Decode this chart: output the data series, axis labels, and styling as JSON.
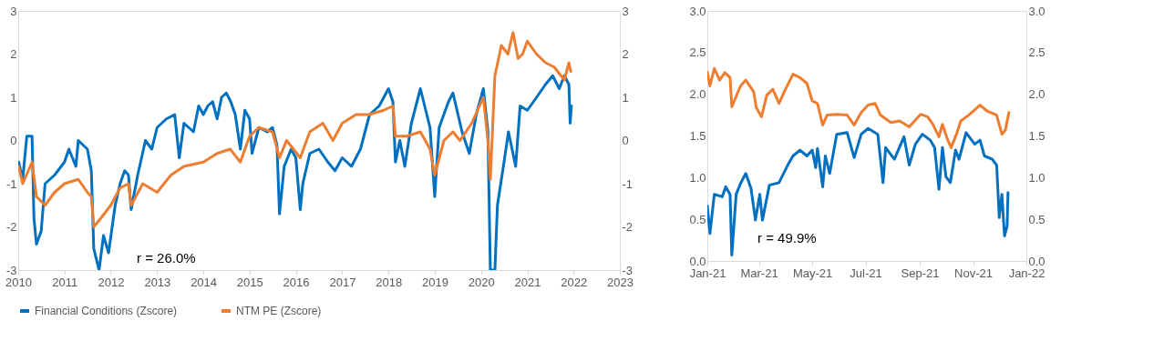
{
  "chart_data": [
    {
      "type": "line",
      "legend": "bottom",
      "grid": false,
      "xlim": [
        "2010-01-01",
        "2023-01-01"
      ],
      "xticks": [
        {
          "value": "2010-01-01",
          "label": "2010"
        },
        {
          "value": "2011-01-01",
          "label": "2011"
        },
        {
          "value": "2012-01-01",
          "label": "2012"
        },
        {
          "value": "2013-01-01",
          "label": "2013"
        },
        {
          "value": "2014-01-01",
          "label": "2014"
        },
        {
          "value": "2015-01-01",
          "label": "2015"
        },
        {
          "value": "2016-01-01",
          "label": "2016"
        },
        {
          "value": "2017-01-01",
          "label": "2017"
        },
        {
          "value": "2018-01-01",
          "label": "2018"
        },
        {
          "value": "2019-01-01",
          "label": "2019"
        },
        {
          "value": "2020-01-01",
          "label": "2020"
        },
        {
          "value": "2021-01-01",
          "label": "2021"
        },
        {
          "value": "2022-01-01",
          "label": "2022"
        },
        {
          "value": "2023-01-01",
          "label": "2023"
        }
      ],
      "ylim": [
        -3,
        3
      ],
      "yticks": [
        -3,
        -2,
        -1,
        0,
        1,
        2,
        3
      ],
      "y2lim": [
        -3,
        3
      ],
      "y2ticks": [
        -3,
        -2,
        -1,
        0,
        1,
        2,
        3
      ],
      "annotations": [
        "r = 26.0%"
      ],
      "series": [
        {
          "name": "Financial Conditions (Zscore)",
          "color": "#0070c0",
          "x": [
            "2010-01-05",
            "2010-02-05",
            "2010-03-10",
            "2010-04-20",
            "2010-05-05",
            "2010-05-25",
            "2010-07-01",
            "2010-08-01",
            "2010-10-15",
            "2011-01-01",
            "2011-02-05",
            "2011-04-01",
            "2011-04-20",
            "2011-07-01",
            "2011-08-01",
            "2011-08-20",
            "2011-10-01",
            "2011-11-05",
            "2011-12-15",
            "2012-02-05",
            "2012-03-15",
            "2012-04-20",
            "2012-05-20",
            "2012-06-10",
            "2012-08-01",
            "2012-10-01",
            "2012-11-20",
            "2013-01-01",
            "2013-03-15",
            "2013-05-20",
            "2013-06-25",
            "2013-08-01",
            "2013-10-15",
            "2013-11-25",
            "2014-01-01",
            "2014-02-05",
            "2014-03-15",
            "2014-04-20",
            "2014-05-25",
            "2014-07-01",
            "2014-08-05",
            "2014-09-10",
            "2014-10-20",
            "2014-11-25",
            "2015-01-01",
            "2015-01-20",
            "2015-03-15",
            "2015-05-20",
            "2015-07-01",
            "2015-08-05",
            "2015-08-25",
            "2015-10-01",
            "2015-11-25",
            "2016-01-01",
            "2016-02-05",
            "2016-02-25",
            "2016-04-20",
            "2016-07-01",
            "2016-09-10",
            "2016-11-05",
            "2017-01-01",
            "2017-03-15",
            "2017-05-25",
            "2017-08-05",
            "2017-10-20",
            "2018-01-01",
            "2018-02-05",
            "2018-02-25",
            "2018-04-01",
            "2018-05-10",
            "2018-07-01",
            "2018-09-10",
            "2018-11-25",
            "2019-01-01",
            "2019-02-05",
            "2019-04-20",
            "2019-05-25",
            "2019-08-05",
            "2019-10-01",
            "2019-11-25",
            "2020-01-20",
            "2020-02-25",
            "2020-03-15",
            "2020-04-20",
            "2020-05-10",
            "2020-07-01",
            "2020-08-05",
            "2020-10-01",
            "2020-11-05",
            "2021-01-01",
            "2021-03-15",
            "2021-05-25",
            "2021-07-20",
            "2021-09-10",
            "2021-10-20",
            "2021-11-25",
            "2021-12-05",
            "2021-12-15"
          ],
          "values": [
            -0.5,
            -0.9,
            0.1,
            0.1,
            -1.8,
            -2.4,
            -2.1,
            -1.0,
            -0.8,
            -0.5,
            -0.2,
            -0.6,
            0.0,
            -0.2,
            -0.7,
            -2.5,
            -3.0,
            -2.2,
            -2.6,
            -1.5,
            -1.0,
            -0.7,
            -0.8,
            -1.6,
            -0.8,
            0.0,
            -0.2,
            0.3,
            0.5,
            0.6,
            -0.4,
            0.4,
            0.2,
            0.8,
            0.6,
            0.8,
            0.9,
            0.5,
            1.0,
            1.1,
            0.9,
            0.6,
            -0.2,
            0.7,
            0.5,
            -0.3,
            0.3,
            0.2,
            0.3,
            -0.1,
            -1.7,
            -0.6,
            -0.2,
            -0.4,
            -1.6,
            -1.0,
            -0.3,
            -0.2,
            -0.5,
            -0.7,
            -0.4,
            -0.6,
            -0.2,
            0.6,
            0.8,
            1.2,
            0.9,
            -0.5,
            0.0,
            -0.6,
            0.4,
            1.2,
            0.3,
            -1.3,
            0.3,
            0.9,
            1.1,
            0.2,
            -0.3,
            0.6,
            1.2,
            0.2,
            -3.0,
            -3.0,
            -1.5,
            -0.5,
            0.2,
            -0.6,
            0.8,
            0.7,
            1.0,
            1.3,
            1.5,
            1.2,
            1.5,
            1.3,
            0.4,
            0.8
          ]
        },
        {
          "name": "NTM PE (Zscore)",
          "color": "#ed7d31",
          "axis": "y2",
          "x": [
            "2010-01-05",
            "2010-02-05",
            "2010-04-20",
            "2010-05-25",
            "2010-08-01",
            "2010-10-15",
            "2011-01-01",
            "2011-04-20",
            "2011-07-01",
            "2011-08-01",
            "2011-08-20",
            "2011-10-15",
            "2012-01-01",
            "2012-03-15",
            "2012-05-20",
            "2012-06-10",
            "2012-09-10",
            "2013-01-01",
            "2013-04-20",
            "2013-08-01",
            "2014-01-01",
            "2014-04-20",
            "2014-08-01",
            "2014-10-20",
            "2015-01-01",
            "2015-03-15",
            "2015-07-01",
            "2015-08-25",
            "2015-10-20",
            "2016-02-05",
            "2016-04-20",
            "2016-08-01",
            "2016-10-20",
            "2017-01-01",
            "2017-04-20",
            "2017-08-01",
            "2017-11-25",
            "2018-02-05",
            "2018-02-25",
            "2018-05-25",
            "2018-09-10",
            "2018-11-25",
            "2019-01-01",
            "2019-03-15",
            "2019-05-25",
            "2019-07-20",
            "2019-10-20",
            "2020-01-20",
            "2020-02-25",
            "2020-03-15",
            "2020-04-20",
            "2020-06-10",
            "2020-08-01",
            "2020-09-10",
            "2020-10-20",
            "2020-11-25",
            "2021-01-01",
            "2021-03-15",
            "2021-05-25",
            "2021-08-01",
            "2021-10-20",
            "2021-11-25",
            "2021-12-10"
          ],
          "values": [
            -0.6,
            -1.0,
            -0.5,
            -1.3,
            -1.5,
            -1.2,
            -1.0,
            -0.9,
            -1.2,
            -1.3,
            -2.0,
            -1.8,
            -1.5,
            -1.1,
            -1.0,
            -1.5,
            -1.0,
            -1.2,
            -0.8,
            -0.6,
            -0.5,
            -0.3,
            -0.2,
            -0.5,
            0.1,
            0.3,
            0.2,
            -0.4,
            0.0,
            -0.4,
            0.2,
            0.4,
            0.0,
            0.4,
            0.6,
            0.6,
            0.7,
            0.8,
            0.1,
            0.1,
            0.2,
            -0.2,
            -0.8,
            0.0,
            0.2,
            0.0,
            0.4,
            1.0,
            0.0,
            -0.9,
            1.5,
            2.2,
            2.0,
            2.5,
            1.9,
            2.0,
            2.3,
            2.0,
            1.8,
            1.7,
            1.4,
            1.8,
            1.6
          ]
        }
      ]
    },
    {
      "type": "line",
      "grid": false,
      "xlim": [
        "2021-01-01",
        "2022-01-01"
      ],
      "xticks": [
        {
          "value": "2021-01-01",
          "label": "Jan-21"
        },
        {
          "value": "2021-03-01",
          "label": "Mar-21"
        },
        {
          "value": "2021-05-01",
          "label": "May-21"
        },
        {
          "value": "2021-07-01",
          "label": "Jul-21"
        },
        {
          "value": "2021-09-01",
          "label": "Sep-21"
        },
        {
          "value": "2021-11-01",
          "label": "Nov-21"
        },
        {
          "value": "2022-01-01",
          "label": "Jan-22"
        }
      ],
      "ylim": [
        0,
        3
      ],
      "yticks": [
        {
          "value": 0,
          "label": "0.0"
        },
        {
          "value": 0.5,
          "label": "0.5"
        },
        {
          "value": 1,
          "label": "1.0"
        },
        {
          "value": 1.5,
          "label": "1.5"
        },
        {
          "value": 2,
          "label": "2.0"
        },
        {
          "value": 2.5,
          "label": "2.5"
        },
        {
          "value": 3,
          "label": "3.0"
        }
      ],
      "y2lim": [
        0,
        3
      ],
      "y2ticks": [
        {
          "value": 0,
          "label": "0.0"
        },
        {
          "value": 0.5,
          "label": "0.5"
        },
        {
          "value": 1,
          "label": "1.0"
        },
        {
          "value": 1.5,
          "label": "1.5"
        },
        {
          "value": 2,
          "label": "2.0"
        },
        {
          "value": 2.5,
          "label": "2.5"
        },
        {
          "value": 3,
          "label": "3.0"
        }
      ],
      "annotations": [
        "r = 49.9%"
      ],
      "series": [
        {
          "color": "#0070c0",
          "x": [
            "2021-01-01",
            "2021-01-04",
            "2021-01-09",
            "2021-01-18",
            "2021-01-22",
            "2021-01-27",
            "2021-01-29",
            "2021-02-03",
            "2021-02-08",
            "2021-02-14",
            "2021-02-20",
            "2021-02-25",
            "2021-03-02",
            "2021-03-05",
            "2021-03-13",
            "2021-03-24",
            "2021-04-03",
            "2021-04-09",
            "2021-04-17",
            "2021-04-25",
            "2021-05-01",
            "2021-05-05",
            "2021-05-07",
            "2021-05-13",
            "2021-05-16",
            "2021-05-21",
            "2021-05-29",
            "2021-06-10",
            "2021-06-18",
            "2021-06-26",
            "2021-07-04",
            "2021-07-15",
            "2021-07-21",
            "2021-07-24",
            "2021-08-03",
            "2021-08-14",
            "2021-08-20",
            "2021-08-27",
            "2021-09-04",
            "2021-09-13",
            "2021-09-18",
            "2021-09-23",
            "2021-09-27",
            "2021-10-01",
            "2021-10-06",
            "2021-10-12",
            "2021-10-16",
            "2021-10-24",
            "2021-11-03",
            "2021-11-09",
            "2021-11-14",
            "2021-11-23",
            "2021-11-28",
            "2021-12-01",
            "2021-12-04",
            "2021-12-07",
            "2021-12-10",
            "2021-12-11"
          ],
          "values": [
            0.66,
            0.33,
            0.8,
            0.77,
            0.89,
            0.8,
            0.07,
            0.8,
            0.93,
            1.05,
            0.87,
            0.49,
            0.8,
            0.49,
            0.91,
            0.94,
            1.15,
            1.26,
            1.33,
            1.26,
            1.33,
            1.12,
            1.35,
            0.89,
            1.26,
            1.05,
            1.52,
            1.54,
            1.24,
            1.52,
            1.59,
            1.52,
            0.94,
            1.36,
            1.22,
            1.49,
            1.15,
            1.4,
            1.52,
            1.45,
            1.36,
            0.86,
            1.36,
            1.01,
            0.94,
            1.33,
            1.22,
            1.54,
            1.4,
            1.45,
            1.26,
            1.22,
            1.15,
            0.52,
            0.8,
            0.3,
            0.42,
            0.82
          ]
        },
        {
          "color": "#ed7d31",
          "axis": "y2",
          "x": [
            "2021-01-01",
            "2021-01-04",
            "2021-01-09",
            "2021-01-15",
            "2021-01-21",
            "2021-01-27",
            "2021-01-29",
            "2021-02-08",
            "2021-02-14",
            "2021-02-23",
            "2021-02-26",
            "2021-03-04",
            "2021-03-10",
            "2021-03-17",
            "2021-03-24",
            "2021-03-30",
            "2021-04-09",
            "2021-04-17",
            "2021-04-25",
            "2021-05-01",
            "2021-05-07",
            "2021-05-13",
            "2021-05-18",
            "2021-05-29",
            "2021-06-10",
            "2021-06-18",
            "2021-06-26",
            "2021-07-04",
            "2021-07-12",
            "2021-07-18",
            "2021-07-30",
            "2021-08-09",
            "2021-08-20",
            "2021-09-02",
            "2021-09-10",
            "2021-09-16",
            "2021-09-23",
            "2021-09-27",
            "2021-10-03",
            "2021-10-07",
            "2021-10-13",
            "2021-10-18",
            "2021-10-27",
            "2021-11-09",
            "2021-11-17",
            "2021-11-28",
            "2021-12-04",
            "2021-12-08",
            "2021-12-12"
          ],
          "values": [
            2.27,
            2.1,
            2.31,
            2.17,
            2.26,
            2.2,
            1.85,
            2.1,
            2.17,
            2.03,
            1.84,
            1.73,
            1.99,
            2.06,
            1.89,
            2.03,
            2.24,
            2.2,
            2.13,
            1.92,
            1.89,
            1.63,
            1.75,
            1.76,
            1.75,
            1.63,
            1.78,
            1.87,
            1.89,
            1.75,
            1.66,
            1.68,
            1.61,
            1.76,
            1.73,
            1.64,
            1.49,
            1.64,
            1.45,
            1.36,
            1.52,
            1.68,
            1.75,
            1.87,
            1.8,
            1.75,
            1.52,
            1.57,
            1.78
          ]
        }
      ]
    }
  ]
}
